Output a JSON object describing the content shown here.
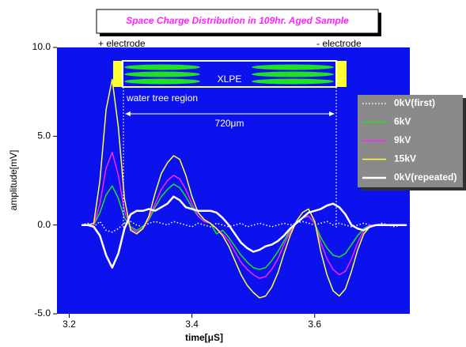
{
  "chart_data": {
    "type": "line",
    "title": "Space Charge Distribution in 109hr. Aged Sample",
    "x_label": "time[μS]",
    "y_label": "amplitude[mV]",
    "annotations": [
      "+ electrode",
      "- electrode",
      "XLPE",
      "water tree region",
      "720μm"
    ],
    "background": "#0c12ee",
    "xlim": [
      3.18,
      3.755
    ],
    "xticks": [
      3.2,
      3.4,
      3.6
    ],
    "ylim": [
      -5,
      10
    ],
    "yticks": [
      {
        "value": -5,
        "label": "-5.0"
      },
      {
        "value": 0,
        "label": "0.0"
      },
      {
        "value": 5,
        "label": "5.0"
      },
      {
        "value": 10,
        "label": "10.0"
      }
    ],
    "x": [
      3.22,
      3.23,
      3.24,
      3.25,
      3.26,
      3.27,
      3.28,
      3.29,
      3.3,
      3.31,
      3.32,
      3.33,
      3.34,
      3.35,
      3.36,
      3.37,
      3.38,
      3.39,
      3.4,
      3.41,
      3.42,
      3.43,
      3.44,
      3.45,
      3.46,
      3.47,
      3.48,
      3.49,
      3.5,
      3.51,
      3.52,
      3.53,
      3.54,
      3.55,
      3.56,
      3.57,
      3.58,
      3.59,
      3.6,
      3.61,
      3.62,
      3.63,
      3.64,
      3.65,
      3.66,
      3.67,
      3.68,
      3.69,
      3.7,
      3.71,
      3.72,
      3.73,
      3.74,
      3.75
    ],
    "series": [
      {
        "name": "0kV(first)",
        "color": "#ffffff",
        "line_style": "dotted",
        "line_width": 1.5,
        "values": [
          0,
          0.1,
          -0.1,
          0.2,
          -0.3,
          -0.4,
          -0.2,
          0.1,
          0.2,
          0,
          -0.1,
          0.1,
          0.2,
          0.1,
          0,
          0.2,
          0.1,
          0,
          -0.1,
          0.1,
          0,
          -0.1,
          0.1,
          0,
          -0.1,
          0,
          0.1,
          -0.1,
          0,
          0.1,
          0,
          -0.1,
          0,
          0.1,
          0,
          0.1,
          0.2,
          0.1,
          0,
          0.1,
          0.2,
          0,
          0.1,
          0,
          -0.1,
          0,
          0.1,
          0,
          0,
          0.1,
          0,
          -0.1,
          0,
          0
        ]
      },
      {
        "name": "6kV",
        "color": "#22e022",
        "line_style": "solid",
        "line_width": 1.5,
        "values": [
          0,
          0,
          0,
          0.7,
          1.7,
          2.2,
          1.5,
          0.4,
          -0.1,
          -0.3,
          -0.1,
          0.3,
          1.0,
          1.6,
          2.0,
          2.3,
          2.1,
          1.6,
          1.0,
          0.5,
          0.2,
          0.1,
          -0.5,
          -0.3,
          -0.7,
          -1.2,
          -1.7,
          -2.1,
          -2.4,
          -2.5,
          -2.4,
          -2.0,
          -1.5,
          -0.9,
          -0.3,
          0.1,
          0.4,
          0.5,
          0.1,
          -0.7,
          -1.3,
          -1.7,
          -1.8,
          -1.6,
          -1.1,
          -0.6,
          -0.2,
          0,
          0,
          0,
          0,
          0,
          0,
          0
        ]
      },
      {
        "name": "9kV",
        "color": "#ff22ff",
        "line_style": "solid",
        "line_width": 1.5,
        "values": [
          0,
          0,
          0,
          1.2,
          3.2,
          4.1,
          2.8,
          0.8,
          -0.2,
          -0.4,
          -0.2,
          0.4,
          1.2,
          2.0,
          2.5,
          2.8,
          2.6,
          2.0,
          1.2,
          0.5,
          0.2,
          0.1,
          -0.2,
          -0.5,
          -0.9,
          -1.5,
          -2.1,
          -2.5,
          -2.8,
          -3.0,
          -2.9,
          -2.5,
          -1.9,
          -1.1,
          -0.4,
          0.1,
          0.4,
          0.5,
          0.1,
          -1.0,
          -1.9,
          -2.5,
          -2.8,
          -2.6,
          -1.9,
          -1.0,
          -0.3,
          0,
          0,
          0,
          0,
          0,
          0,
          0
        ]
      },
      {
        "name": "15kV",
        "color": "#ffff33",
        "line_style": "solid",
        "line_width": 1.5,
        "values": [
          0,
          0,
          0.1,
          2.5,
          6.5,
          8.2,
          5.5,
          1.5,
          -0.3,
          -0.5,
          -0.2,
          0.5,
          1.8,
          2.9,
          3.5,
          3.9,
          3.7,
          2.8,
          1.6,
          0.7,
          0.3,
          0.1,
          -0.2,
          -0.6,
          -1.2,
          -2.0,
          -2.8,
          -3.4,
          -3.8,
          -4.1,
          -4.0,
          -3.5,
          -2.7,
          -1.6,
          -0.6,
          0.2,
          0.7,
          0.9,
          0.2,
          -1.5,
          -2.8,
          -3.7,
          -4.0,
          -3.6,
          -2.6,
          -1.4,
          -0.5,
          -0.1,
          0,
          0,
          0,
          0,
          0,
          0
        ]
      },
      {
        "name": "0kV(repeated)",
        "color": "#ffffff",
        "line_style": "solid",
        "line_width": 2.5,
        "values": [
          0,
          0,
          -0.1,
          -0.6,
          -1.7,
          -2.4,
          -1.6,
          -0.2,
          0.6,
          0.8,
          0.8,
          0.9,
          0.8,
          1.0,
          1.2,
          1.6,
          1.4,
          1.0,
          0.9,
          0.8,
          0.8,
          0.8,
          0.7,
          0.4,
          0,
          -0.5,
          -1.0,
          -1.3,
          -1.5,
          -1.4,
          -1.2,
          -1.1,
          -0.9,
          -0.6,
          -0.2,
          0.1,
          0.4,
          0.7,
          0.8,
          0.9,
          1.1,
          1.2,
          1.0,
          0.6,
          0,
          -0.2,
          -0.3,
          -0.1,
          0,
          0,
          0,
          0,
          0,
          0
        ]
      }
    ],
    "legend_position": "right"
  }
}
